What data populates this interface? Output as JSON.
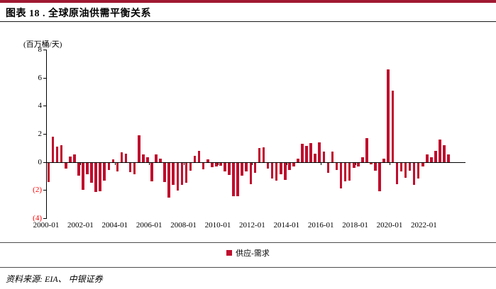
{
  "header": {
    "title": "图表 18 . 全球原油供需平衡关系"
  },
  "colors": {
    "band": "#A01931",
    "bar": "#C00D2D",
    "negative_tick": "#ff0000"
  },
  "chart_data": {
    "type": "bar",
    "title": "全球原油供需平衡关系",
    "unit_label": "(百万桶/天)",
    "xlabel": "",
    "ylabel": "百万桶/天",
    "ylim": [
      -4,
      8
    ],
    "ytick_interval": 2,
    "negative_tick_style": "red-parentheses",
    "grid": false,
    "legend_position": "bottom-center",
    "bar_color": "#C00D2D",
    "x_tick_labels": [
      "2000-01",
      "2002-01",
      "2004-01",
      "2006-01",
      "2008-01",
      "2010-01",
      "2012-01",
      "2014-01",
      "2016-01",
      "2018-01",
      "2020-01",
      "2022-01"
    ],
    "x_label_every": 8,
    "categories": [
      "2000-01",
      "2000-04",
      "2000-07",
      "2000-10",
      "2001-01",
      "2001-04",
      "2001-07",
      "2001-10",
      "2002-01",
      "2002-04",
      "2002-07",
      "2002-10",
      "2003-01",
      "2003-04",
      "2003-07",
      "2003-10",
      "2004-01",
      "2004-04",
      "2004-07",
      "2004-10",
      "2005-01",
      "2005-04",
      "2005-07",
      "2005-10",
      "2006-01",
      "2006-04",
      "2006-07",
      "2006-10",
      "2007-01",
      "2007-04",
      "2007-07",
      "2007-10",
      "2008-01",
      "2008-04",
      "2008-07",
      "2008-10",
      "2009-01",
      "2009-04",
      "2009-07",
      "2009-10",
      "2010-01",
      "2010-04",
      "2010-07",
      "2010-10",
      "2011-01",
      "2011-04",
      "2011-07",
      "2011-10",
      "2012-01",
      "2012-04",
      "2012-07",
      "2012-10",
      "2013-01",
      "2013-04",
      "2013-07",
      "2013-10",
      "2014-01",
      "2014-04",
      "2014-07",
      "2014-10",
      "2015-01",
      "2015-04",
      "2015-07",
      "2015-10",
      "2016-01",
      "2016-04",
      "2016-07",
      "2016-10",
      "2017-01",
      "2017-04",
      "2017-07",
      "2017-10",
      "2018-01",
      "2018-04",
      "2018-07",
      "2018-10",
      "2019-01",
      "2019-04",
      "2019-07",
      "2019-10",
      "2020-01",
      "2020-04",
      "2020-07",
      "2020-10",
      "2021-01",
      "2021-04",
      "2021-07",
      "2021-10",
      "2022-01",
      "2022-04",
      "2022-07",
      "2022-10",
      "2023-01",
      "2023-04"
    ],
    "series": [
      {
        "name": "供应-需求",
        "values": [
          -1.4,
          1.8,
          1.1,
          1.2,
          -0.4,
          0.4,
          0.55,
          -0.9,
          -1.95,
          -0.8,
          -1.45,
          -2.1,
          -2.05,
          -1.3,
          -0.5,
          0.2,
          -0.6,
          0.7,
          0.6,
          -0.65,
          -0.8,
          1.9,
          0.55,
          0.35,
          -1.35,
          0.55,
          0.25,
          -1.4,
          -2.5,
          -1.6,
          -2.0,
          -1.6,
          -1.45,
          -0.55,
          0.45,
          0.8,
          -0.45,
          0.2,
          -0.3,
          -0.25,
          -0.2,
          -0.6,
          -0.85,
          -2.4,
          -2.4,
          -0.95,
          -0.6,
          -1.55,
          -0.7,
          1.0,
          1.05,
          -0.4,
          -1.15,
          -1.3,
          -0.8,
          -1.25,
          -0.5,
          -0.25,
          0.25,
          1.3,
          1.15,
          1.35,
          0.6,
          1.4,
          0.75,
          -0.7,
          0.75,
          -0.5,
          -1.85,
          -1.35,
          -1.3,
          -0.35,
          -0.25,
          0.35,
          1.7,
          -0.1,
          -0.55,
          -2.05,
          0.25,
          6.6,
          5.1,
          -1.55,
          -0.6,
          -1.1,
          -0.55,
          -1.6,
          -1.15,
          -0.25,
          0.55,
          0.35,
          0.8,
          1.6,
          1.2,
          0.55
        ]
      }
    ]
  },
  "legend": {
    "items": [
      {
        "label": "供应-需求",
        "color": "#C00D2D"
      }
    ]
  },
  "source": {
    "text": "资料来源: EIA、 中银证券"
  }
}
